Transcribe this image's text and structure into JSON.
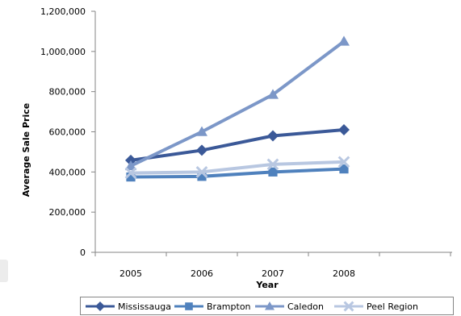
{
  "chart_data": {
    "type": "line",
    "title": "",
    "xlabel": "Year",
    "ylabel": "Average Sale Price",
    "x": [
      "2005",
      "2006",
      "2007",
      "2008"
    ],
    "ylim": [
      0,
      1200000
    ],
    "yticks": [
      0,
      200000,
      400000,
      600000,
      800000,
      1000000,
      1200000
    ],
    "ytick_labels": [
      "0",
      "200,000",
      "400,000",
      "600,000",
      "800,000",
      "1,000,000",
      "1,200,000"
    ],
    "grid": false,
    "legend_position": "bottom",
    "series": [
      {
        "name": "Mississauga",
        "values": [
          458000,
          508000,
          580000,
          610000
        ],
        "color": "#3b5998",
        "marker": "diamond"
      },
      {
        "name": "Brampton",
        "values": [
          375000,
          378000,
          400000,
          415000
        ],
        "color": "#4f81bd",
        "marker": "square"
      },
      {
        "name": "Caledon",
        "values": [
          430000,
          600000,
          785000,
          1050000
        ],
        "color": "#7c97c8",
        "marker": "triangle"
      },
      {
        "name": "Peel Region",
        "values": [
          395000,
          400000,
          438000,
          450000
        ],
        "color": "#b8c7e1",
        "marker": "x"
      }
    ]
  }
}
